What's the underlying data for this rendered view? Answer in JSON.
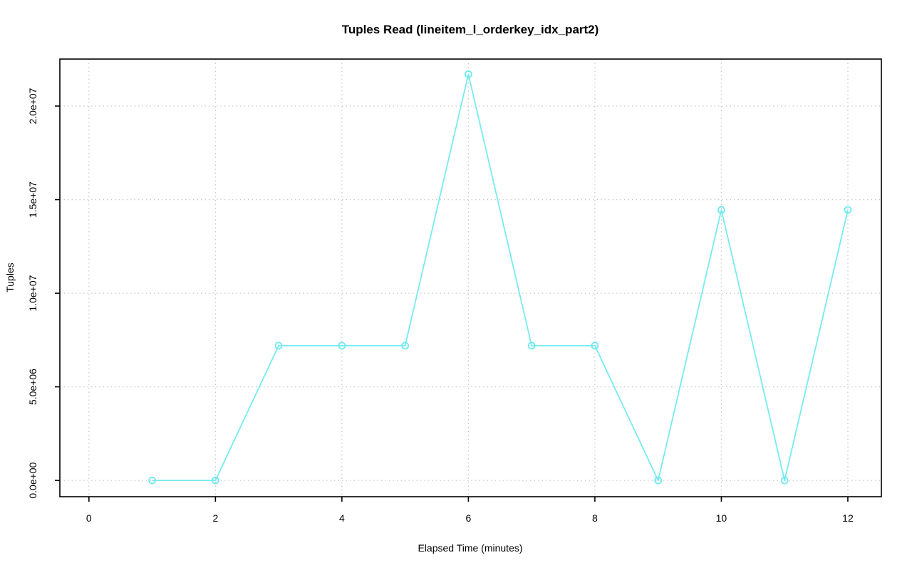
{
  "title": "Tuples Read (lineitem_l_orderkey_idx_part2)",
  "chart_data": {
    "type": "line",
    "title": "Tuples Read (lineitem_l_orderkey_idx_part2)",
    "xlabel": "Elapsed Time (minutes)",
    "ylabel": "Tuples",
    "x": [
      1,
      2,
      3,
      4,
      5,
      6,
      7,
      8,
      9,
      10,
      11,
      12
    ],
    "y": [
      0,
      0,
      7200000,
      7200000,
      7200000,
      21700000,
      7200000,
      7200000,
      0,
      14450000,
      0,
      14450000
    ],
    "xlim": [
      -0.46,
      12.53
    ],
    "ylim": [
      -870000,
      22510000
    ],
    "xticks": {
      "values": [
        0,
        2,
        4,
        6,
        8,
        10,
        12
      ],
      "labels": [
        "0",
        "2",
        "4",
        "6",
        "8",
        "10",
        "12"
      ]
    },
    "yticks": {
      "values": [
        0,
        5000000,
        10000000,
        15000000,
        20000000
      ],
      "labels": [
        "0.0e+00",
        "5.0e+06",
        "1.0e+07",
        "1.5e+07",
        "2.0e+07"
      ]
    },
    "grid": true,
    "legend": "none",
    "marker": "open-circle",
    "colors": {
      "line": "#75ECEF",
      "marker": "#6FE9EE",
      "grid": "#C9C9C9",
      "axis": "#000000",
      "text": "#000000",
      "background": "#FFFFFF"
    }
  }
}
